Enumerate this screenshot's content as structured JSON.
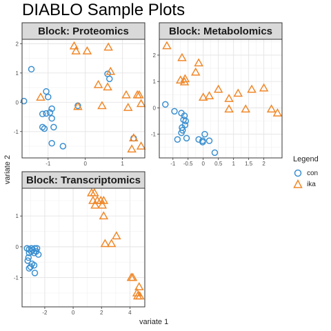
{
  "title": "DIABLO Sample Plots",
  "xlabel": "variate 1",
  "ylabel": "variate 2",
  "legend": {
    "title": "Legend",
    "entries": [
      {
        "label": "con",
        "color": "#3a8fd0",
        "shape": "circle"
      },
      {
        "label": "ika",
        "color": "#f0882a",
        "shape": "triangle"
      }
    ]
  },
  "chart_data": [
    {
      "type": "scatter",
      "title": "Block: Proteomics",
      "xlim": [
        -1.7,
        1.6
      ],
      "ylim": [
        -1.9,
        2.15
      ],
      "xticks": [
        -1,
        0,
        1
      ],
      "yticks": [
        -1,
        0,
        1,
        2
      ],
      "grid": true,
      "series": [
        {
          "name": "con",
          "points": [
            [
              -1.45,
              1.13
            ],
            [
              -1.65,
              0.04
            ],
            [
              -1.05,
              0.37
            ],
            [
              -1.0,
              0.18
            ],
            [
              -0.95,
              -0.35
            ],
            [
              -1.05,
              -0.38
            ],
            [
              -0.9,
              -0.22
            ],
            [
              -1.15,
              -0.4
            ],
            [
              -0.9,
              -0.55
            ],
            [
              -1.15,
              -0.85
            ],
            [
              -1.1,
              -0.9
            ],
            [
              -0.85,
              -0.85
            ],
            [
              -0.9,
              -1.4
            ],
            [
              -0.6,
              -1.5
            ],
            [
              -0.2,
              -0.12
            ],
            [
              0.6,
              0.97
            ],
            [
              0.65,
              0.8
            ],
            [
              1.3,
              -1.23
            ]
          ]
        },
        {
          "name": "ika",
          "points": [
            [
              -0.3,
              1.92
            ],
            [
              -0.25,
              1.75
            ],
            [
              0.05,
              1.75
            ],
            [
              0.62,
              1.88
            ],
            [
              0.68,
              1.05
            ],
            [
              0.35,
              0.6
            ],
            [
              0.6,
              0.52
            ],
            [
              -1.2,
              0.17
            ],
            [
              -0.2,
              -0.15
            ],
            [
              0.45,
              -0.12
            ],
            [
              1.1,
              0.25
            ],
            [
              1.4,
              0.25
            ],
            [
              1.45,
              0.25
            ],
            [
              1.15,
              -0.18
            ],
            [
              1.5,
              -0.05
            ],
            [
              1.3,
              -1.22
            ],
            [
              1.25,
              -1.6
            ],
            [
              1.5,
              -1.5
            ]
          ]
        }
      ]
    },
    {
      "type": "scatter",
      "title": "Block: Metabolomics",
      "xlim": [
        -1.45,
        2.6
      ],
      "ylim": [
        -1.9,
        2.6
      ],
      "xticks": [
        -1,
        -0.5,
        0,
        0.5,
        1,
        1.5,
        2
      ],
      "yticks": [
        -1,
        0,
        1,
        2
      ],
      "grid": true,
      "series": [
        {
          "name": "con",
          "points": [
            [
              -1.25,
              0.13
            ],
            [
              -0.95,
              -0.13
            ],
            [
              -0.72,
              -0.2
            ],
            [
              -0.62,
              -0.3
            ],
            [
              -0.65,
              -0.45
            ],
            [
              -0.58,
              -0.5
            ],
            [
              -0.6,
              -0.65
            ],
            [
              -0.7,
              -0.75
            ],
            [
              -0.68,
              -0.85
            ],
            [
              -0.72,
              -0.95
            ],
            [
              -0.85,
              -1.2
            ],
            [
              -0.55,
              -1.15
            ],
            [
              -0.15,
              -1.2
            ],
            [
              0.05,
              -1.0
            ],
            [
              -0.02,
              -1.3
            ],
            [
              0.2,
              -1.25
            ],
            [
              0.38,
              -1.7
            ],
            [
              -0.02,
              -1.25
            ]
          ]
        },
        {
          "name": "ika",
          "points": [
            [
              -1.2,
              2.35
            ],
            [
              -0.7,
              1.9
            ],
            [
              -0.15,
              1.7
            ],
            [
              -0.25,
              1.35
            ],
            [
              -0.75,
              1.05
            ],
            [
              -0.6,
              1.1
            ],
            [
              -0.62,
              0.98
            ],
            [
              0.0,
              0.4
            ],
            [
              0.2,
              0.45
            ],
            [
              0.5,
              0.7
            ],
            [
              0.85,
              0.35
            ],
            [
              1.15,
              0.55
            ],
            [
              1.6,
              0.7
            ],
            [
              2.0,
              0.75
            ],
            [
              0.85,
              -0.05
            ],
            [
              1.4,
              -0.05
            ],
            [
              2.25,
              -0.05
            ],
            [
              2.45,
              -0.2
            ]
          ]
        }
      ]
    },
    {
      "type": "scatter",
      "title": "Block: Transcriptomics",
      "xlim": [
        -3.6,
        5.05
      ],
      "ylim": [
        -1.95,
        1.9
      ],
      "xticks": [
        -2,
        0,
        2,
        4
      ],
      "yticks": [
        -1,
        0,
        1
      ],
      "grid": true,
      "series": [
        {
          "name": "con",
          "points": [
            [
              -3.25,
              -0.05
            ],
            [
              -3.1,
              -0.08
            ],
            [
              -2.95,
              -0.05
            ],
            [
              -2.85,
              -0.1
            ],
            [
              -2.7,
              -0.05
            ],
            [
              -2.55,
              -0.05
            ],
            [
              -2.6,
              -0.15
            ],
            [
              -2.45,
              -0.25
            ],
            [
              -2.75,
              -0.2
            ],
            [
              -2.95,
              -0.15
            ],
            [
              -3.1,
              -0.2
            ],
            [
              -3.15,
              -0.35
            ],
            [
              -3.2,
              -0.45
            ],
            [
              -2.9,
              -0.55
            ],
            [
              -2.75,
              -0.6
            ],
            [
              -3.0,
              -0.65
            ],
            [
              -3.1,
              -0.7
            ],
            [
              -2.7,
              -0.85
            ]
          ]
        },
        {
          "name": "ika",
          "points": [
            [
              1.3,
              1.75
            ],
            [
              1.5,
              1.75
            ],
            [
              1.4,
              1.5
            ],
            [
              1.7,
              1.5
            ],
            [
              1.55,
              1.35
            ],
            [
              1.95,
              1.5
            ],
            [
              2.15,
              1.5
            ],
            [
              2.05,
              1.35
            ],
            [
              2.15,
              1.0
            ],
            [
              2.25,
              0.1
            ],
            [
              2.7,
              0.1
            ],
            [
              3.05,
              0.35
            ],
            [
              4.1,
              -1.0
            ],
            [
              4.2,
              -1.0
            ],
            [
              4.65,
              -1.3
            ],
            [
              4.5,
              -1.5
            ],
            [
              4.7,
              -1.6
            ],
            [
              4.55,
              -1.6
            ]
          ]
        }
      ]
    }
  ]
}
